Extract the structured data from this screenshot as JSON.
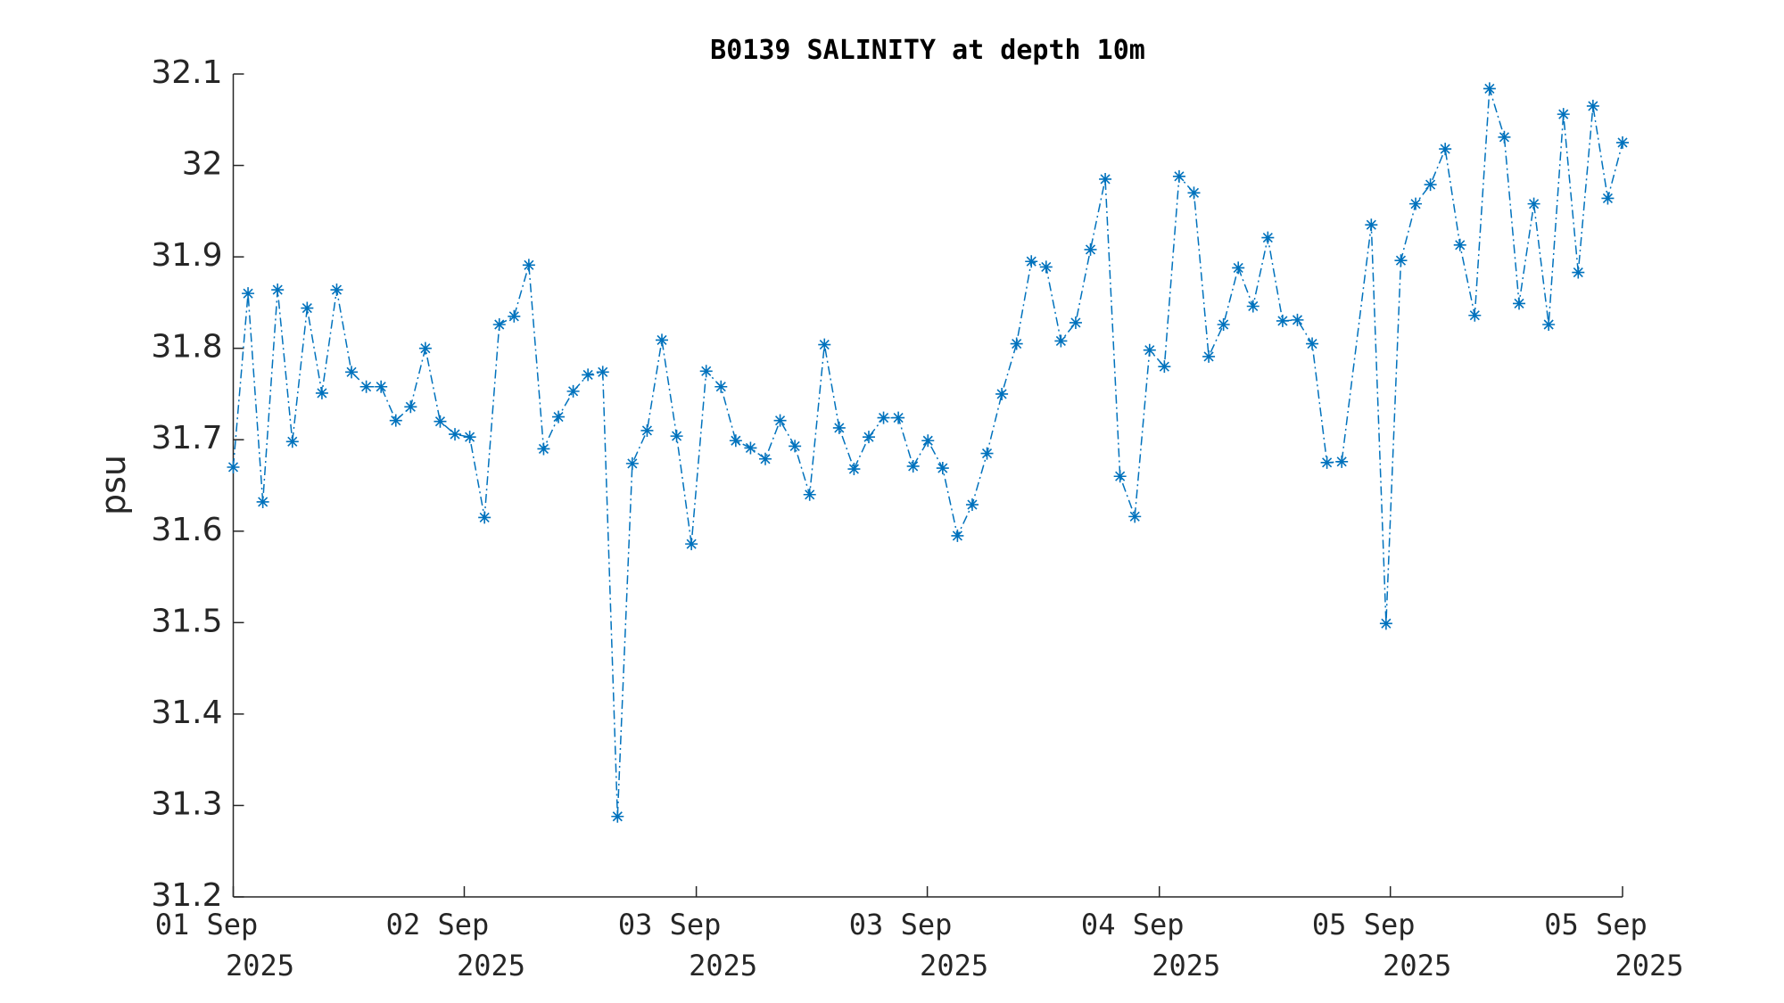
{
  "chart_data": {
    "type": "line",
    "title": "B0139 SALINITY at depth 10m",
    "y_label": "psu",
    "x": [
      0,
      1,
      2,
      3,
      4,
      5,
      6,
      7,
      8,
      9,
      10,
      11,
      12,
      13,
      14,
      15,
      16,
      17,
      18,
      19,
      20,
      21,
      22,
      23,
      24,
      25,
      26,
      27,
      28,
      29,
      30,
      31,
      32,
      33,
      34,
      35,
      36,
      37,
      38,
      39,
      40,
      41,
      42,
      43,
      44,
      45,
      46,
      47,
      48,
      49,
      50,
      51,
      52,
      53,
      54,
      55,
      56,
      57,
      58,
      59,
      60,
      61,
      62,
      63,
      64,
      65,
      66,
      67,
      68,
      69,
      70,
      71,
      72,
      73,
      74,
      75,
      77,
      78,
      79,
      80,
      81,
      82,
      83,
      84,
      85,
      86,
      87,
      88,
      89,
      90,
      91,
      92,
      93,
      94
    ],
    "series": [
      {
        "name": "B0139 SALINITY",
        "color": "#0072BD",
        "line_style": "dash-dot",
        "marker": "asterisk",
        "values": [
          31.67,
          31.86,
          31.632,
          31.864,
          31.698,
          31.844,
          31.751,
          31.864,
          31.774,
          31.758,
          31.758,
          31.721,
          31.736,
          31.8,
          31.72,
          31.706,
          31.703,
          31.615,
          31.826,
          31.835,
          31.891,
          31.69,
          31.725,
          31.753,
          31.771,
          31.774,
          31.288,
          31.674,
          31.71,
          31.809,
          31.704,
          31.586,
          31.775,
          31.758,
          31.699,
          31.691,
          31.679,
          31.721,
          31.693,
          31.64,
          31.804,
          31.713,
          31.668,
          31.703,
          31.724,
          31.724,
          31.671,
          31.699,
          31.669,
          31.595,
          31.629,
          31.685,
          31.75,
          31.805,
          31.895,
          31.889,
          31.808,
          31.828,
          31.908,
          31.985,
          31.66,
          31.616,
          31.798,
          31.78,
          31.988,
          31.97,
          31.791,
          31.826,
          31.888,
          31.846,
          31.921,
          31.83,
          31.831,
          31.805,
          31.675,
          31.676,
          31.935,
          31.499,
          31.896,
          31.958,
          31.979,
          32.018,
          31.913,
          31.836,
          32.084,
          32.031,
          31.849,
          31.958,
          31.826,
          32.056,
          31.883,
          32.065,
          31.964,
          32.025
        ]
      }
    ],
    "xlim": [
      0,
      94
    ],
    "xticks": [
      {
        "value": 0,
        "label": "01 Sep 2025"
      },
      {
        "value": 15.63,
        "label": "02 Sep 2025"
      },
      {
        "value": 31.33,
        "label": "03 Sep 2025"
      },
      {
        "value": 46.96,
        "label": "03 Sep 2025"
      },
      {
        "value": 62.66,
        "label": "04 Sep 2025"
      },
      {
        "value": 78.29,
        "label": "05 Sep 2025"
      },
      {
        "value": 94,
        "label": "05 Sep 2025"
      }
    ],
    "ylim": [
      31.2,
      32.1
    ],
    "yticks": [
      31.2,
      31.3,
      31.4,
      31.5,
      31.6,
      31.7,
      31.8,
      31.9,
      32,
      32.1
    ],
    "grid": false
  }
}
